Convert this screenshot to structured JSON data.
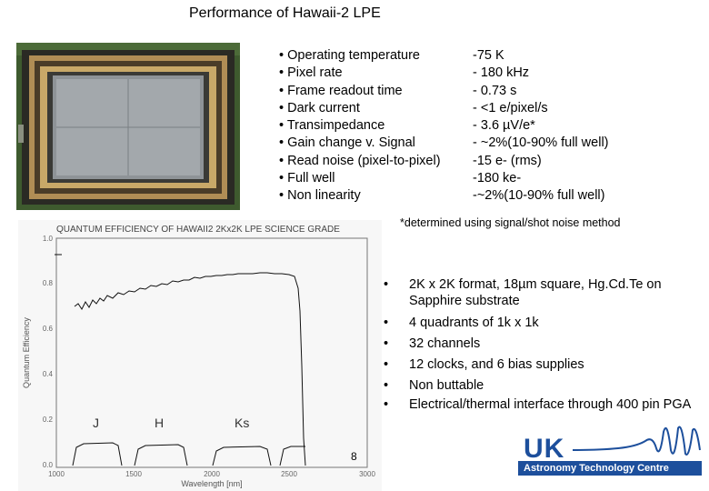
{
  "title": "Performance of Hawaii-2 LPE",
  "specs": [
    {
      "label": "• Operating temperature",
      "value": "-75 K"
    },
    {
      "label": "• Pixel rate",
      "value": "- 180 kHz"
    },
    {
      "label": "• Frame readout time",
      "value": "- 0.73 s"
    },
    {
      "label": "• Dark current",
      "value": "- <1 e/pixel/s"
    },
    {
      "label": "• Transimpedance",
      "value": "- 3.6 µV/e*"
    },
    {
      "label": "• Gain change v. Signal",
      "value": "- ~2%(10-90% full well)"
    },
    {
      "label": "• Read noise (pixel-to-pixel)",
      "value": "-15 e- (rms)"
    },
    {
      "label": "• Full well",
      "value": "-180 ke-"
    },
    {
      "label": "• Non linearity",
      "value": "-~2%(10-90% full  well)"
    }
  ],
  "note": "*determined using signal/shot noise method",
  "qe_chart": {
    "title": "QUANTUM  EFFICIENCY  OF  HAWAII2  2Kx2K   LPE  SCIENCE  GRADE",
    "ylabel": "Quantum Efficiency",
    "xlabel": "Wavelength [nm]",
    "yticks": [
      "1.0",
      "0.8",
      "0.6",
      "0.4",
      "0.2",
      "0.0"
    ],
    "xticks": [
      "1000",
      "1500",
      "2000",
      "2500",
      "3000"
    ],
    "bands": [
      "J",
      "H",
      "Ks"
    ],
    "marker": "8"
  },
  "bullets": [
    "2K x 2K format, 18µm square,  Hg.Cd.Te on Sapphire substrate",
    "4 quadrants of 1k x 1k",
    "32 channels",
    "12 clocks, and 6 bias supplies",
    "Non buttable",
    "Electrical/thermal interface through 400 pin PGA"
  ],
  "bullet_symbol": "•",
  "logo": {
    "uk": "UK",
    "tagline": "Astronomy Technology Centre"
  },
  "colors": {
    "logo_blue": "#1d4f9c",
    "board_green": "#3e5a2e",
    "detector_gray": "#8e9397"
  }
}
